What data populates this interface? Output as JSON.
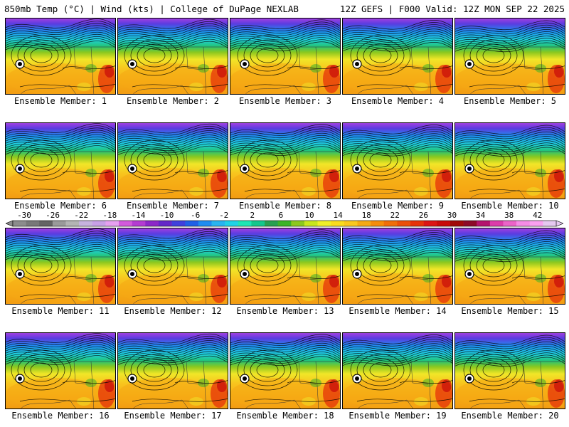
{
  "header": {
    "left": "850mb Temp (°C) | Wind (kts) | College of DuPage NEXLAB",
    "right": "12Z GEFS | F000 Valid: 12Z MON SEP 22 2025"
  },
  "panels": [
    {
      "label": "Ensemble Member: 1"
    },
    {
      "label": "Ensemble Member: 2"
    },
    {
      "label": "Ensemble Member: 3"
    },
    {
      "label": "Ensemble Member: 4"
    },
    {
      "label": "Ensemble Member: 5"
    },
    {
      "label": "Ensemble Member: 6"
    },
    {
      "label": "Ensemble Member: 7"
    },
    {
      "label": "Ensemble Member: 8"
    },
    {
      "label": "Ensemble Member: 9"
    },
    {
      "label": "Ensemble Member: 10"
    },
    {
      "label": "Ensemble Member: 11"
    },
    {
      "label": "Ensemble Member: 12"
    },
    {
      "label": "Ensemble Member: 13"
    },
    {
      "label": "Ensemble Member: 14"
    },
    {
      "label": "Ensemble Member: 15"
    },
    {
      "label": "Ensemble Member: 16"
    },
    {
      "label": "Ensemble Member: 17"
    },
    {
      "label": "Ensemble Member: 18"
    },
    {
      "label": "Ensemble Member: 19"
    },
    {
      "label": "Ensemble Member: 20"
    }
  ],
  "colorbar": {
    "tick_labels": [
      "-30",
      "-26",
      "-22",
      "-18",
      "-14",
      "-10",
      "-6",
      "-2",
      "2",
      "6",
      "10",
      "14",
      "18",
      "22",
      "26",
      "30",
      "34",
      "38",
      "42"
    ],
    "colors": [
      "#8c8c8c",
      "#787878",
      "#646464",
      "#9a9a9a",
      "#b4b4b4",
      "#c7b3de",
      "#c8a0e6",
      "#e6a0f0",
      "#d25adc",
      "#b43cd2",
      "#8c28c8",
      "#6428c8",
      "#4040dc",
      "#2060e6",
      "#1e8cf0",
      "#28b4f0",
      "#20d2e6",
      "#1ee6b4",
      "#14c88c",
      "#28a050",
      "#3cb428",
      "#8cc81e",
      "#c8e61e",
      "#f0f028",
      "#fadc1e",
      "#fac81e",
      "#f5aa14",
      "#f58c0a",
      "#f06e0a",
      "#eb500a",
      "#e6320a",
      "#dc1414",
      "#c80a0a",
      "#a00a0a",
      "#8c0a28",
      "#b4146e",
      "#dc3caa",
      "#eb64c8",
      "#f58ce6",
      "#faa0f0",
      "#e6c8f0"
    ]
  }
}
